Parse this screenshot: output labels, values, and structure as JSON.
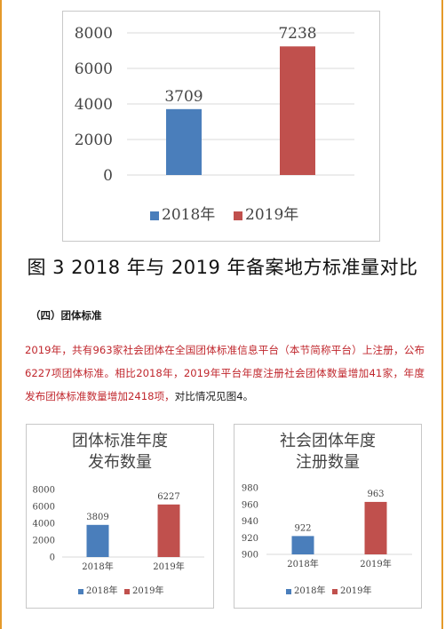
{
  "figure3": {
    "caption": "图 3   2018 年与 2019 年备案地方标准量对比",
    "chart_data": {
      "type": "bar",
      "title": "",
      "categories": [
        "2018年",
        "2019年"
      ],
      "values": [
        3709,
        7238
      ],
      "data_labels": [
        "3709",
        "7238"
      ],
      "colors": [
        "#4a7ebb",
        "#c0504d"
      ],
      "ylim": [
        0,
        8000
      ],
      "y_ticks": [
        "0",
        "2000",
        "4000",
        "6000",
        "8000"
      ],
      "grid": true,
      "legend": [
        "2018年",
        "2019年"
      ],
      "legend_position": "bottom"
    }
  },
  "section": {
    "heading": "（四）团体标准",
    "paragraph_main": "2019年，共有963家社会团体在全国团体标准信息平台（本节简称平台）上注册，公布6227项团体标准。相比2018年，2019年平台年度注册社会团体数量增加41家，年度发布团体标准数量增加2418项，",
    "paragraph_tail": "对比情况见图4。"
  },
  "figure4": {
    "chart_data": [
      {
        "type": "bar",
        "title": "团体标准年度发布数量",
        "categories": [
          "2018年",
          "2019年"
        ],
        "values": [
          3809,
          6227
        ],
        "data_labels": [
          "3809",
          "6227"
        ],
        "colors": [
          "#4a7ebb",
          "#c0504d"
        ],
        "ylim": [
          0,
          8000
        ],
        "y_ticks": [
          "0",
          "2000",
          "4000",
          "6000",
          "8000"
        ],
        "grid": false,
        "legend": [
          "2018年",
          "2019年"
        ],
        "legend_position": "bottom"
      },
      {
        "type": "bar",
        "title": "社会团体年度注册数量",
        "categories": [
          "2018年",
          "2019年"
        ],
        "values": [
          922,
          963
        ],
        "data_labels": [
          "922",
          "963"
        ],
        "colors": [
          "#4a7ebb",
          "#c0504d"
        ],
        "ylim": [
          900,
          980
        ],
        "y_ticks": [
          "900",
          "920",
          "940",
          "960",
          "980"
        ],
        "grid": false,
        "legend": [
          "2018年",
          "2019年"
        ],
        "legend_position": "bottom"
      }
    ]
  }
}
